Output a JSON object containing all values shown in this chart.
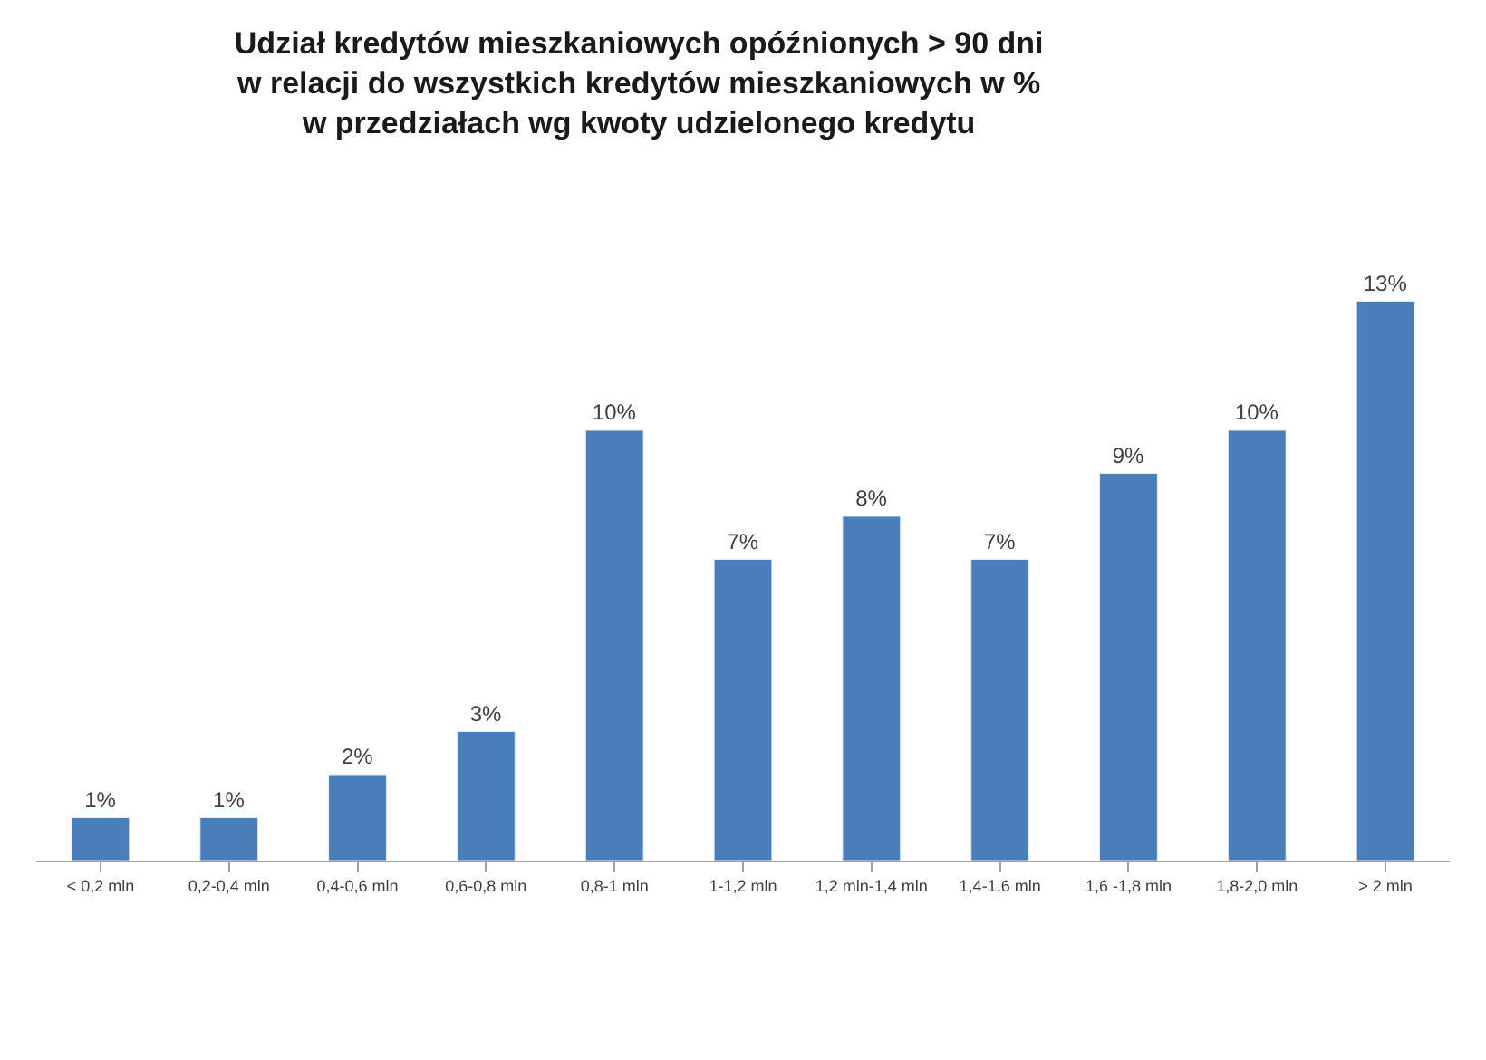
{
  "chart_data": {
    "type": "bar",
    "title": "Udział kredytów mieszkaniowych opóźnionych > 90 dni\nw relacji do wszystkich kredytów mieszkaniowych w %\nw przedziałach wg kwoty udzielonego kredytu",
    "categories": [
      "< 0,2 mln",
      "0,2-0,4 mln",
      "0,4-0,6 mln",
      "0,6-0,8 mln",
      "0,8-1 mln",
      "1-1,2 mln",
      "1,2 mln-1,4 mln",
      "1,4-1,6 mln",
      "1,6 -1,8 mln",
      "1,8-2,0 mln",
      "> 2 mln"
    ],
    "values": [
      1,
      1,
      2,
      3,
      10,
      7,
      8,
      7,
      9,
      10,
      13
    ],
    "value_labels": [
      "1%",
      "1%",
      "2%",
      "3%",
      "10%",
      "7%",
      "8%",
      "7%",
      "9%",
      "10%",
      "13%"
    ],
    "color": "#4a7ebb",
    "legend": false,
    "tick_labels": "x"
  }
}
